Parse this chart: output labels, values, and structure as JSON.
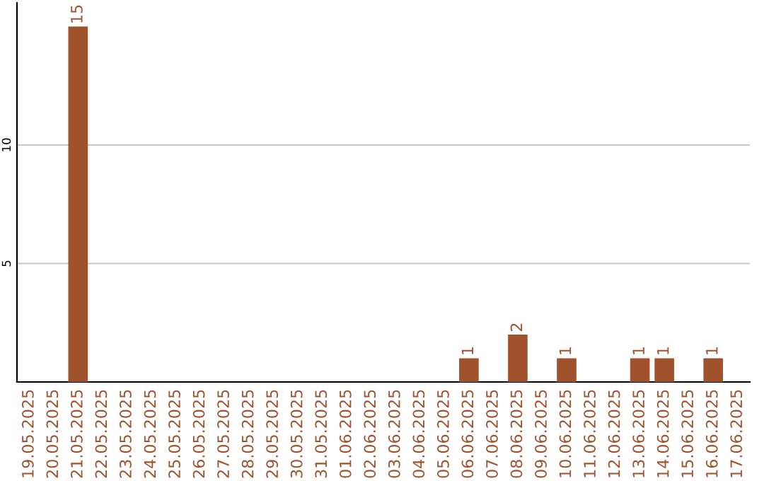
{
  "chart_data": {
    "type": "bar",
    "categories": [
      "19.05.2025",
      "20.05.2025",
      "21.05.2025",
      "22.05.2025",
      "23.05.2025",
      "24.05.2025",
      "25.05.2025",
      "26.05.2025",
      "27.05.2025",
      "28.05.2025",
      "29.05.2025",
      "30.05.2025",
      "31.05.2025",
      "01.06.2025",
      "02.06.2025",
      "03.06.2025",
      "04.06.2025",
      "05.06.2025",
      "06.06.2025",
      "07.06.2025",
      "08.06.2025",
      "09.06.2025",
      "10.06.2025",
      "11.06.2025",
      "12.06.2025",
      "13.06.2025",
      "14.06.2025",
      "15.06.2025",
      "16.06.2025",
      "17.06.2025"
    ],
    "series": [
      {
        "color": "#a0522d",
        "values": [
          0,
          0,
          15,
          0,
          0,
          0,
          0,
          0,
          0,
          0,
          0,
          0,
          0,
          0,
          0,
          0,
          0,
          0,
          1,
          0,
          2,
          0,
          1,
          0,
          0,
          1,
          1,
          0,
          1,
          0
        ],
        "value_labels": [
          null,
          null,
          "15",
          null,
          null,
          null,
          null,
          null,
          null,
          null,
          null,
          null,
          null,
          null,
          null,
          null,
          null,
          null,
          "1",
          null,
          "2",
          null,
          "1",
          null,
          null,
          "1",
          "1",
          null,
          "1",
          null
        ]
      }
    ],
    "ylim": [
      0,
      16
    ],
    "yticks": [
      5,
      10
    ],
    "grid": "y"
  }
}
